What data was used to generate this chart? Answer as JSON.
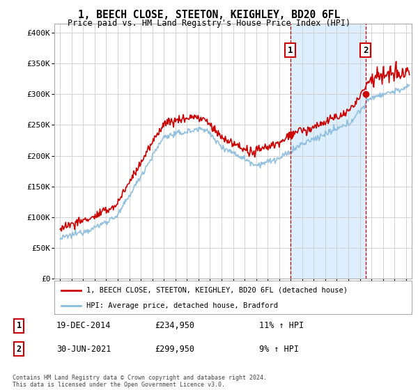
{
  "title": "1, BEECH CLOSE, STEETON, KEIGHLEY, BD20 6FL",
  "subtitle": "Price paid vs. HM Land Registry's House Price Index (HPI)",
  "ylabel_ticks": [
    "£0",
    "£50K",
    "£100K",
    "£150K",
    "£200K",
    "£250K",
    "£300K",
    "£350K",
    "£400K"
  ],
  "ytick_vals": [
    0,
    50000,
    100000,
    150000,
    200000,
    250000,
    300000,
    350000,
    400000
  ],
  "ylim": [
    0,
    415000
  ],
  "xlim_start": 1994.5,
  "xlim_end": 2025.5,
  "sale1_date": 2014.97,
  "sale1_label": "1",
  "sale1_price": 234950,
  "sale2_date": 2021.5,
  "sale2_label": "2",
  "sale2_price": 299950,
  "red_color": "#cc0000",
  "blue_color": "#88bbdd",
  "shade_color": "#ddeeff",
  "background_color": "#ffffff",
  "grid_color": "#cccccc",
  "legend_label1": "1, BEECH CLOSE, STEETON, KEIGHLEY, BD20 6FL (detached house)",
  "legend_label2": "HPI: Average price, detached house, Bradford",
  "table_row1": [
    "1",
    "19-DEC-2014",
    "£234,950",
    "11% ↑ HPI"
  ],
  "table_row2": [
    "2",
    "30-JUN-2021",
    "£299,950",
    "9% ↑ HPI"
  ],
  "footnote": "Contains HM Land Registry data © Crown copyright and database right 2024.\nThis data is licensed under the Open Government Licence v3.0."
}
